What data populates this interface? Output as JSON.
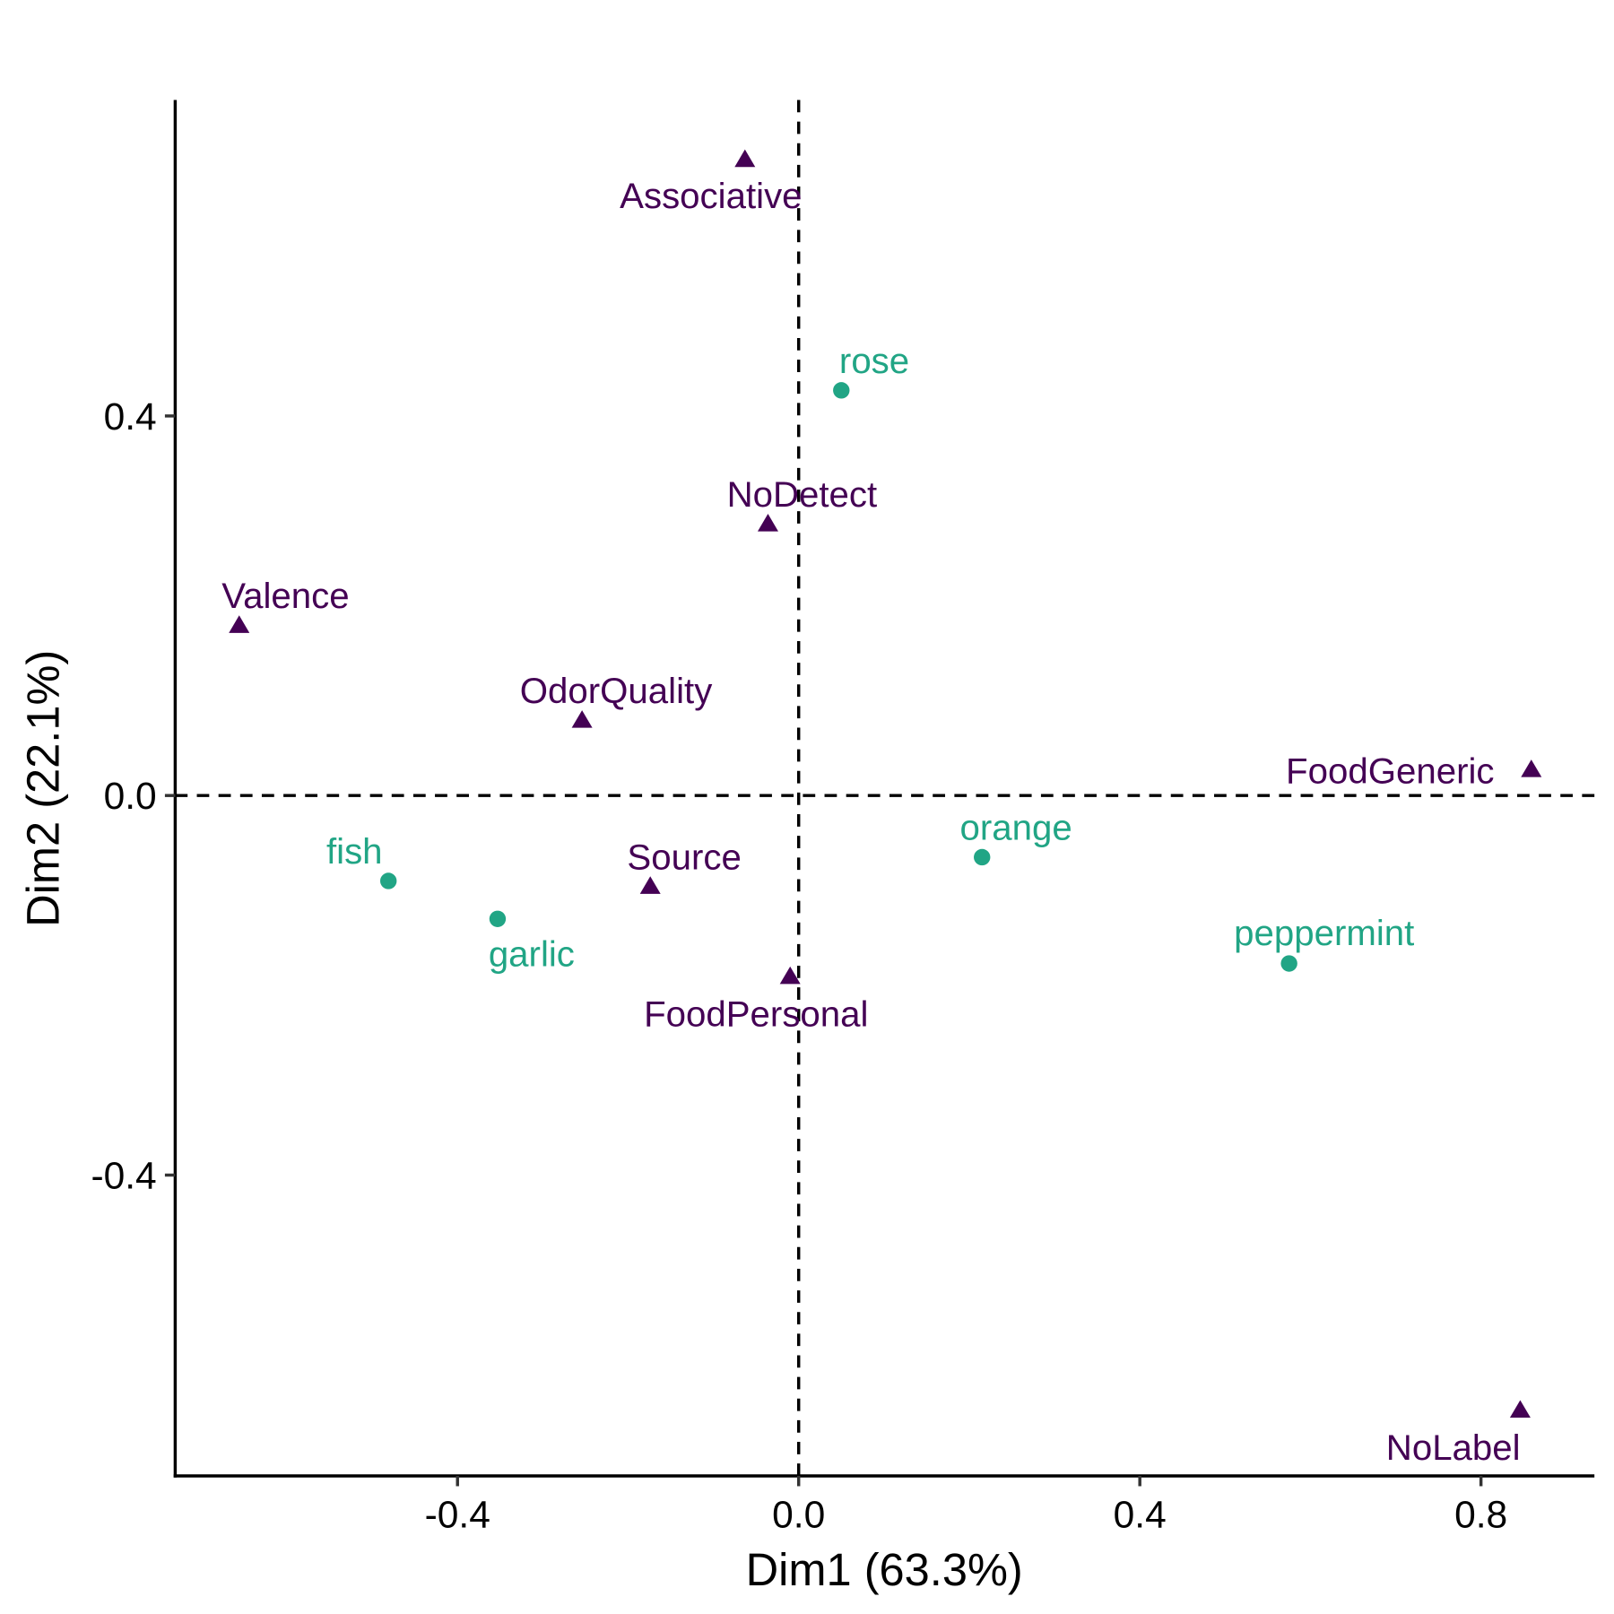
{
  "chart_data": {
    "type": "scatter",
    "title": "",
    "xlabel": "Dim1 (63.3%)",
    "ylabel": "Dim2 (22.1%)",
    "xlim": [
      -0.731,
      0.933
    ],
    "ylim": [
      -0.717,
      0.733
    ],
    "xticks": [
      -0.4,
      0.0,
      0.4,
      0.8
    ],
    "xtick_labels": [
      "-0.4",
      "0.0",
      "0.4",
      "0.8"
    ],
    "yticks": [
      -0.4,
      0.0,
      0.4
    ],
    "ytick_labels": [
      "-0.4",
      "0.0",
      "0.4"
    ],
    "grid": false,
    "reference_lines": {
      "x": 0,
      "y": 0,
      "style": "dashed"
    },
    "colors": {
      "column": "#440154",
      "row": "#21A585"
    },
    "series": [
      {
        "group": "column",
        "marker": "triangle",
        "points": [
          {
            "label": "Associative",
            "x": -0.063,
            "y": 0.67
          },
          {
            "label": "NoDetect",
            "x": -0.036,
            "y": 0.286
          },
          {
            "label": "Valence",
            "x": -0.656,
            "y": 0.179
          },
          {
            "label": "OdorQuality",
            "x": -0.254,
            "y": 0.079
          },
          {
            "label": "FoodGeneric",
            "x": 0.859,
            "y": 0.027
          },
          {
            "label": "Source",
            "x": -0.174,
            "y": -0.096
          },
          {
            "label": "FoodPersonal",
            "x": -0.01,
            "y": -0.191
          },
          {
            "label": "NoLabel",
            "x": 0.846,
            "y": -0.648
          }
        ]
      },
      {
        "group": "row",
        "marker": "circle",
        "points": [
          {
            "label": "rose",
            "x": 0.05,
            "y": 0.427
          },
          {
            "label": "orange",
            "x": 0.215,
            "y": -0.065
          },
          {
            "label": "fish",
            "x": -0.481,
            "y": -0.09
          },
          {
            "label": "garlic",
            "x": -0.353,
            "y": -0.13
          },
          {
            "label": "peppermint",
            "x": 0.575,
            "y": -0.177
          }
        ]
      }
    ]
  }
}
